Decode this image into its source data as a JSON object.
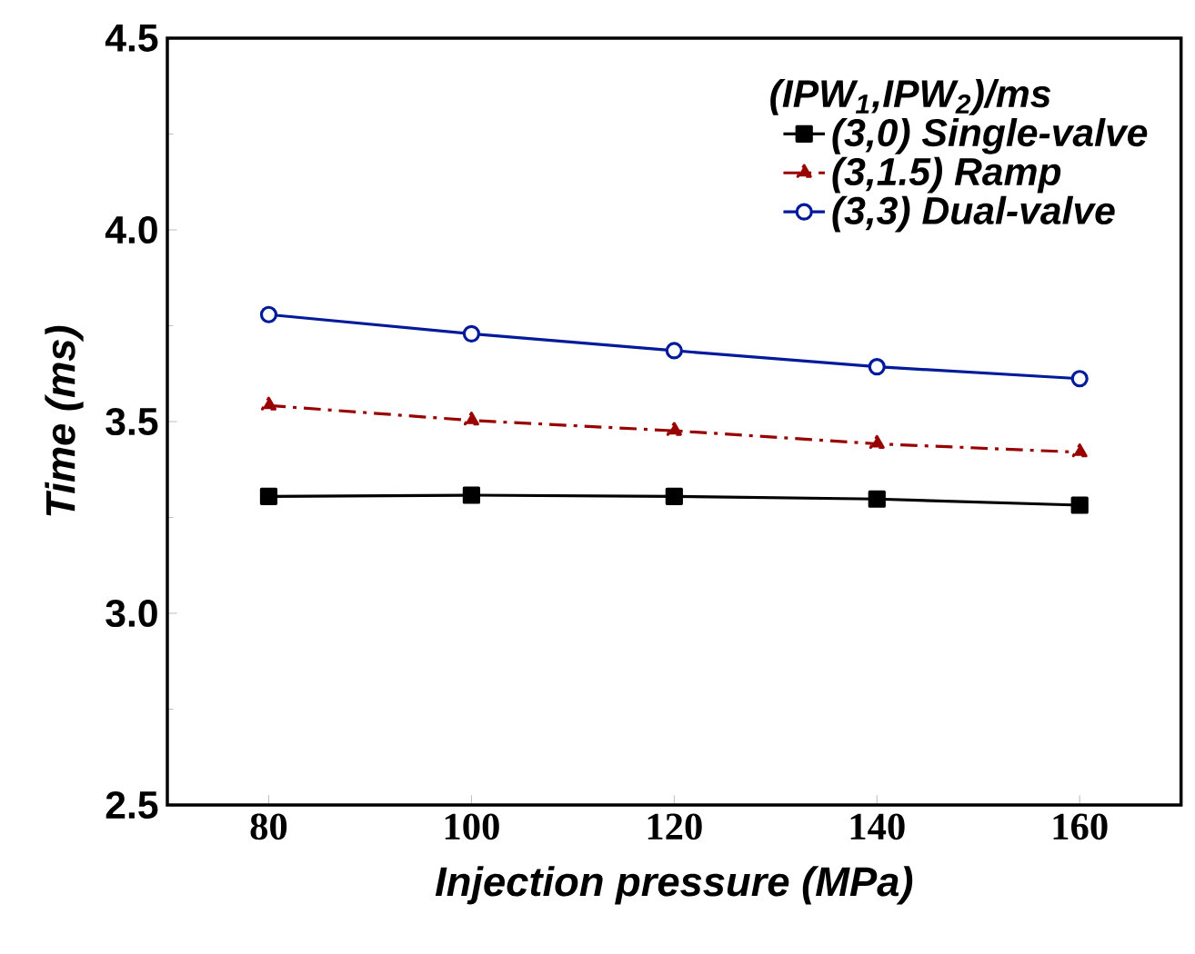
{
  "chart_data": {
    "type": "line",
    "xlabel": "Injection pressure (MPa)",
    "ylabel": "Time (ms)",
    "legend_title": "(IPW$_{1}$,IPW$_{2}$)/ms",
    "x": [
      80,
      100,
      120,
      140,
      160
    ],
    "xlim": [
      70,
      170
    ],
    "xticks": [
      80,
      100,
      120,
      140,
      160
    ],
    "ylim": [
      2.5,
      4.5
    ],
    "yticks": [
      {
        "value": 2.5,
        "label": "2.5"
      },
      {
        "value": 3.0,
        "label": "3.0"
      },
      {
        "value": 3.5,
        "label": "3.5"
      },
      {
        "value": 4.0,
        "label": "4.0"
      },
      {
        "value": 4.5,
        "label": "4.5"
      }
    ],
    "grid": false,
    "legend": "top right",
    "series": [
      {
        "name": "(3,0) Single-valve",
        "color": "#000000",
        "marker": "square",
        "line_style": "solid",
        "values": [
          3.305,
          3.308,
          3.305,
          3.298,
          3.282
        ]
      },
      {
        "name": "(3,1.5) Ramp",
        "color": "#990000",
        "marker": "triangle",
        "line_style": "dashed",
        "values": [
          3.542,
          3.503,
          3.476,
          3.442,
          3.42
        ]
      },
      {
        "name": "(3,3) Dual-valve",
        "color": "#001a9a",
        "marker": "circle",
        "line_style": "solid",
        "values": [
          3.779,
          3.729,
          3.685,
          3.643,
          3.612
        ]
      }
    ]
  }
}
